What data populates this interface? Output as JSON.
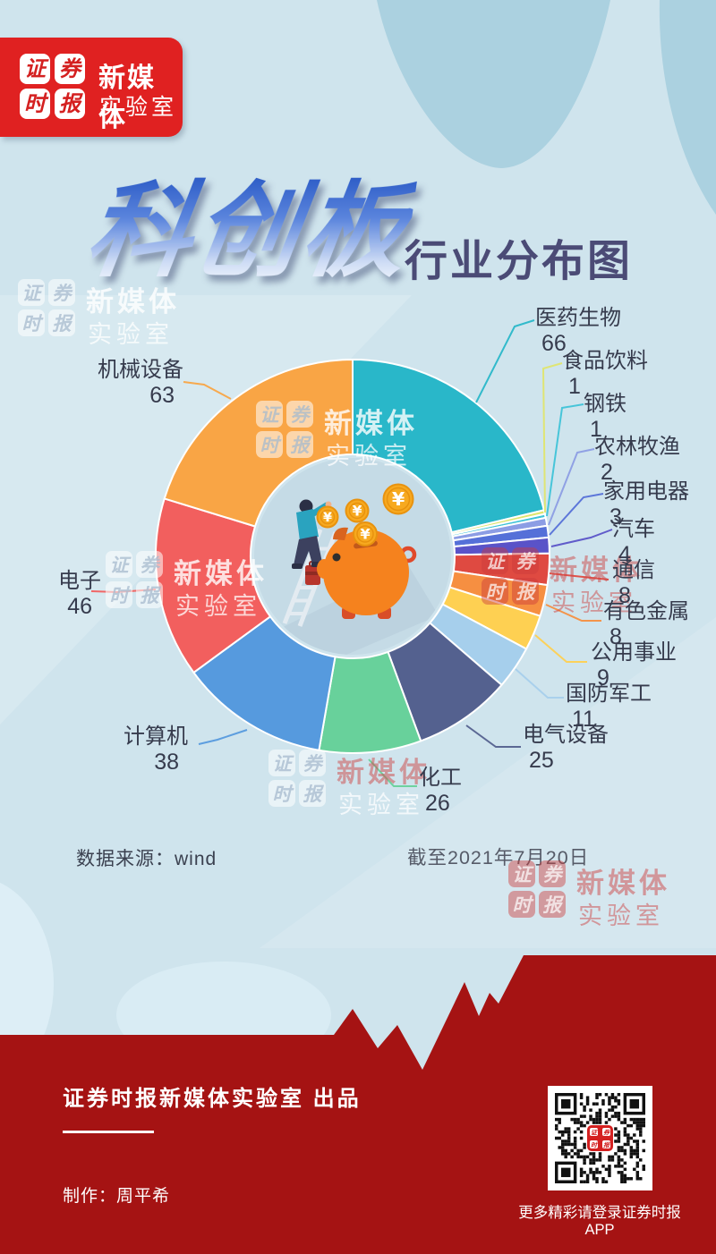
{
  "logo": {
    "grid_chars": [
      "证",
      "券",
      "时",
      "报"
    ],
    "line1": "新媒体",
    "line2": "实验室"
  },
  "title": {
    "main": "科创板",
    "sub": "行业分布图"
  },
  "chart_data": {
    "type": "pie",
    "variant": "donut",
    "title": "科创板行业分布图",
    "legend_position": "outside-callouts",
    "start_angle_deg": 0,
    "direction": "clockwise",
    "segments": [
      {
        "name": "医药生物",
        "value": 66,
        "color": "#29b7c9"
      },
      {
        "name": "食品饮料",
        "value": 1,
        "color": "#dfe56e"
      },
      {
        "name": "钢铁",
        "value": 1,
        "color": "#3fc3d8"
      },
      {
        "name": "农林牧渔",
        "value": 2,
        "color": "#8c9de4"
      },
      {
        "name": "家用电器",
        "value": 3,
        "color": "#5570d8"
      },
      {
        "name": "汽车",
        "value": 4,
        "color": "#5a53c8"
      },
      {
        "name": "通信",
        "value": 8,
        "color": "#df4a41"
      },
      {
        "name": "有色金属",
        "value": 8,
        "color": "#f68f41"
      },
      {
        "name": "公用事业",
        "value": 9,
        "color": "#fed052"
      },
      {
        "name": "国防军工",
        "value": 11,
        "color": "#a6cfec"
      },
      {
        "name": "电气设备",
        "value": 25,
        "color": "#54618f"
      },
      {
        "name": "化工",
        "value": 26,
        "color": "#68d19b"
      },
      {
        "name": "计算机",
        "value": 38,
        "color": "#569ade"
      },
      {
        "name": "电子",
        "value": 46,
        "color": "#f25f5e"
      },
      {
        "name": "机械设备",
        "value": 63,
        "color": "#f9a545"
      }
    ],
    "source": "数据来源：wind",
    "as_of": "截至2021年7月20日"
  },
  "illustration": {
    "coin_symbol": "¥"
  },
  "footer": {
    "producer": "证券时报新媒体实验室 出品",
    "maker": "制作：周平希",
    "qr_caption": "更多精彩请登录证券时报APP"
  },
  "colors": {
    "page_bg": "#cfe4ed",
    "blob_blue": "#abd1e0",
    "logo_red": "#e02121",
    "footer_red": "#a51313",
    "subtitle": "#4b4b76",
    "label_text": "#363b4d"
  }
}
